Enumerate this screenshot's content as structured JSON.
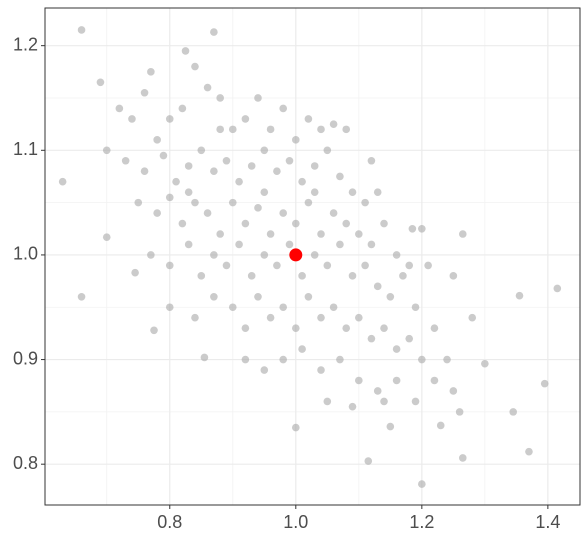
{
  "chart_data": {
    "type": "scatter",
    "xlim": [
      0.602,
      1.451
    ],
    "ylim": [
      0.761,
      1.236
    ],
    "xticks": [
      0.8,
      {
        "value": 1,
        "label": "1.0"
      },
      1.2,
      1.4
    ],
    "yticks": [
      0.8,
      0.9,
      {
        "value": 1,
        "label": "1.0"
      },
      1.1,
      1.2
    ],
    "xminor": [
      0.7,
      0.9,
      1.1,
      1.3
    ],
    "yminor": [
      0.85,
      0.95,
      1.05,
      1.15
    ],
    "grid": true,
    "points": {
      "color": "#a9a9a9",
      "x": [
        0.66,
        0.825,
        0.87,
        0.69,
        0.77,
        0.63,
        0.66,
        0.7,
        0.745,
        0.775,
        0.855,
        1.0,
        1.115,
        1.2,
        1.265,
        1.345,
        1.37,
        1.395,
        1.415,
        1.355,
        1.265,
        1.26,
        1.3,
        1.23,
        1.2,
        1.185,
        1.15,
        0.72,
        0.74,
        0.76,
        0.78,
        0.8,
        0.82,
        0.84,
        0.86,
        0.88,
        0.9,
        0.92,
        0.94,
        0.96,
        0.98,
        1.0,
        1.02,
        1.04,
        1.06,
        1.08,
        0.7,
        0.73,
        0.76,
        0.79,
        0.81,
        0.83,
        0.85,
        0.87,
        0.89,
        0.91,
        0.93,
        0.95,
        0.97,
        0.99,
        1.01,
        1.03,
        1.05,
        1.07,
        1.09,
        1.11,
        1.13,
        0.75,
        0.78,
        0.8,
        0.82,
        0.84,
        0.86,
        0.88,
        0.9,
        0.92,
        0.94,
        0.96,
        0.98,
        1.0,
        1.02,
        1.04,
        1.06,
        1.08,
        1.1,
        1.12,
        1.14,
        1.16,
        1.18,
        0.77,
        0.8,
        0.83,
        0.85,
        0.87,
        0.89,
        0.91,
        0.93,
        0.95,
        0.97,
        0.99,
        1.01,
        1.03,
        1.05,
        1.07,
        1.09,
        1.11,
        1.13,
        1.15,
        1.17,
        1.19,
        0.8,
        0.84,
        0.87,
        0.9,
        0.92,
        0.94,
        0.96,
        0.98,
        1.0,
        1.02,
        1.04,
        1.06,
        1.08,
        1.1,
        1.12,
        1.14,
        1.16,
        1.18,
        1.2,
        1.22,
        0.92,
        0.95,
        0.98,
        1.01,
        1.04,
        1.07,
        1.1,
        1.13,
        1.16,
        1.19,
        1.22,
        1.25,
        1.05,
        1.09,
        1.14,
        1.24,
        1.28,
        1.25,
        1.21,
        0.83,
        0.88,
        0.95,
        1.03,
        1.12
      ],
      "y": [
        1.215,
        1.195,
        1.213,
        1.165,
        1.175,
        1.07,
        0.96,
        1.017,
        0.983,
        0.928,
        0.902,
        0.835,
        0.803,
        0.781,
        0.806,
        0.85,
        0.812,
        0.877,
        0.968,
        0.961,
        1.02,
        0.85,
        0.896,
        0.837,
        1.025,
        1.025,
        0.836,
        1.14,
        1.13,
        1.155,
        1.11,
        1.13,
        1.14,
        1.18,
        1.16,
        1.15,
        1.12,
        1.13,
        1.15,
        1.12,
        1.14,
        1.11,
        1.13,
        1.12,
        1.125,
        1.12,
        1.1,
        1.09,
        1.08,
        1.095,
        1.07,
        1.085,
        1.1,
        1.08,
        1.09,
        1.07,
        1.085,
        1.1,
        1.08,
        1.09,
        1.07,
        1.085,
        1.1,
        1.075,
        1.06,
        1.05,
        1.06,
        1.05,
        1.04,
        1.055,
        1.03,
        1.05,
        1.04,
        1.02,
        1.05,
        1.03,
        1.045,
        1.02,
        1.04,
        1.03,
        1.05,
        1.02,
        1.04,
        1.03,
        1.02,
        1.01,
        1.03,
        1.0,
        0.99,
        1.0,
        0.99,
        1.01,
        0.98,
        1.0,
        0.99,
        1.01,
        0.98,
        1.0,
        0.99,
        1.01,
        0.98,
        1.0,
        0.99,
        1.01,
        0.98,
        0.99,
        0.97,
        0.96,
        0.98,
        0.95,
        0.95,
        0.94,
        0.96,
        0.95,
        0.93,
        0.96,
        0.94,
        0.95,
        0.93,
        0.96,
        0.94,
        0.95,
        0.93,
        0.94,
        0.92,
        0.93,
        0.91,
        0.92,
        0.9,
        0.93,
        0.9,
        0.89,
        0.9,
        0.91,
        0.89,
        0.9,
        0.88,
        0.87,
        0.88,
        0.86,
        0.88,
        0.87,
        0.86,
        0.855,
        0.86,
        0.9,
        0.94,
        0.98,
        0.99,
        1.06,
        1.12,
        1.06,
        1.06,
        1.09
      ]
    },
    "highlight": {
      "color": "#ff0000",
      "x": 1,
      "y": 1
    }
  }
}
